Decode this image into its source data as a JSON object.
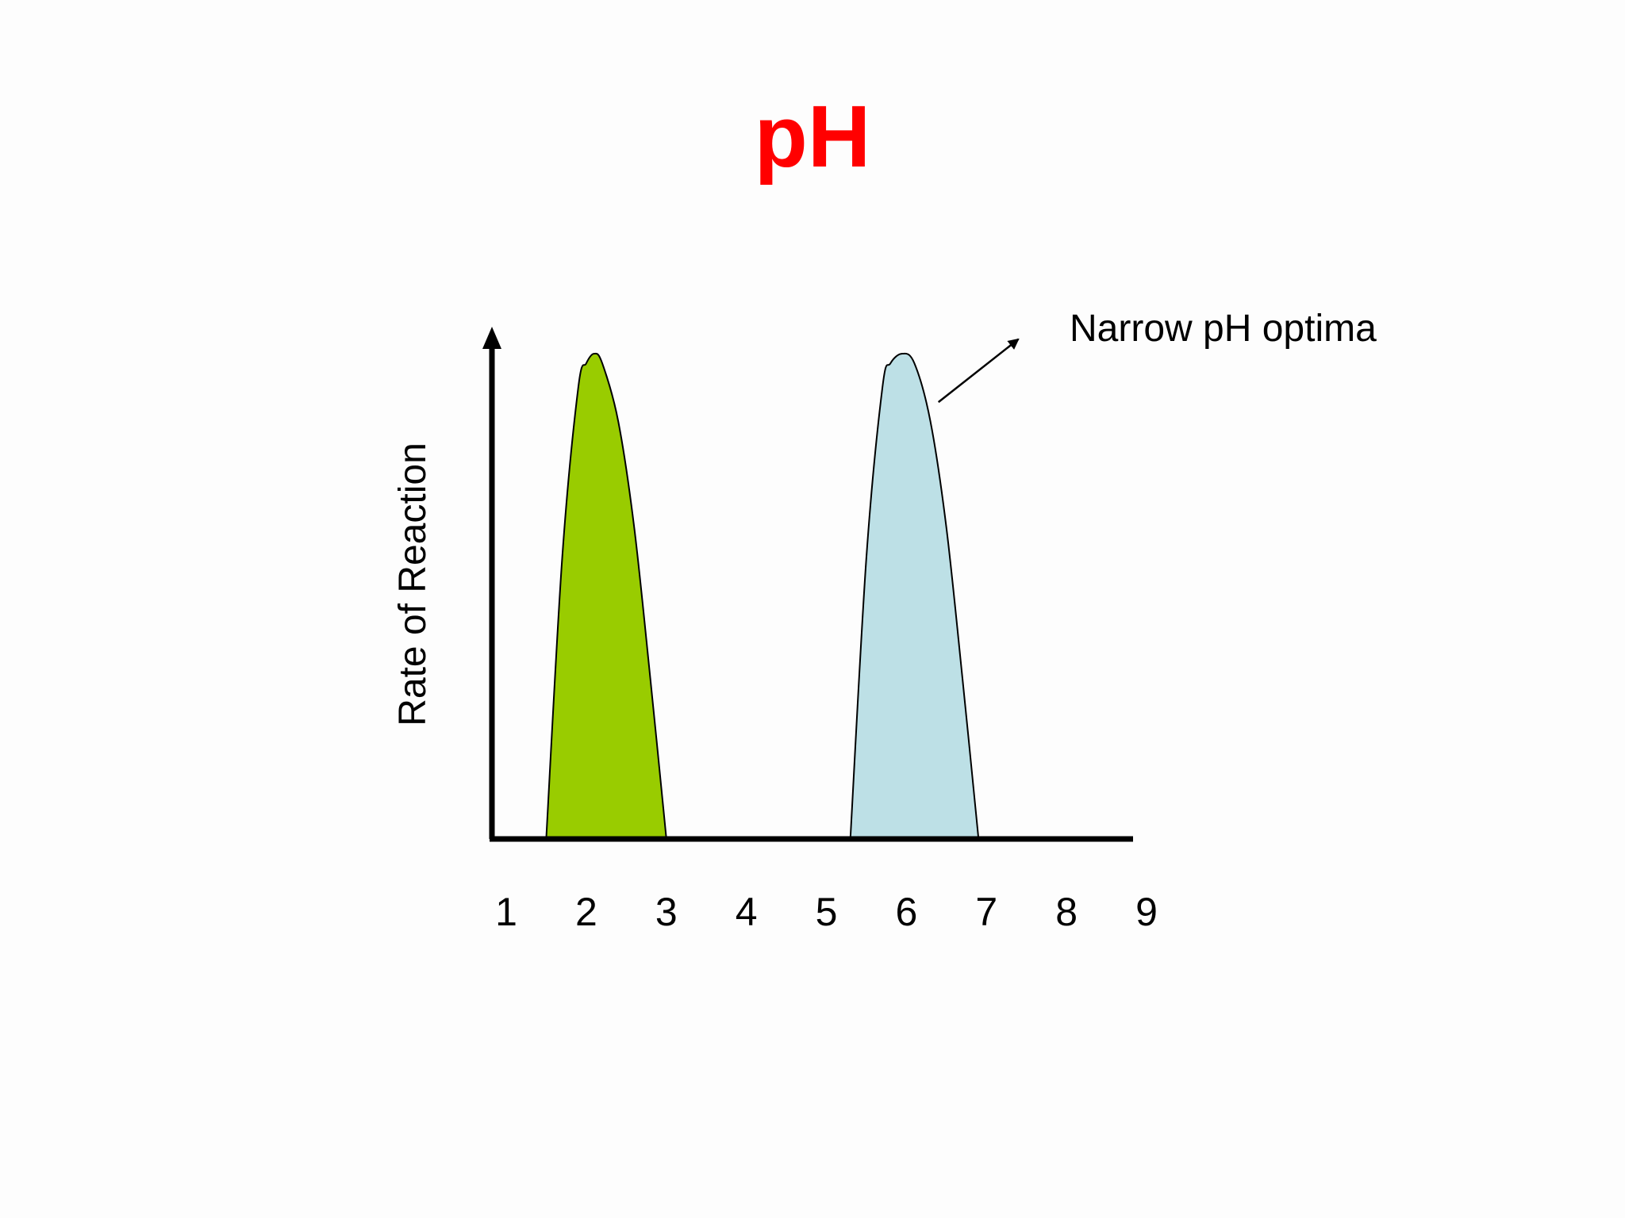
{
  "slide": {
    "title": "pH"
  },
  "colors": {
    "title": "#ff0000",
    "axis": "#000000",
    "series_1": "#99cc00",
    "series_2": "#bde0e6"
  },
  "chart_data": {
    "type": "area",
    "title": "pH",
    "xlabel": "",
    "ylabel": "Rate of Reaction",
    "x_ticks": [
      "1",
      "2",
      "3",
      "4",
      "5",
      "6",
      "7",
      "8",
      "9"
    ],
    "xlim": [
      1,
      9
    ],
    "ylim": [
      0,
      1
    ],
    "grid": false,
    "legend": "none",
    "series": [
      {
        "color": "#99cc00",
        "x": [
          1.5,
          1.7,
          1.9,
          2.0,
          2.1,
          2.2,
          2.4,
          2.6,
          2.8,
          3.0
        ],
        "values": [
          0.0,
          0.58,
          0.93,
          0.98,
          1.0,
          0.98,
          0.86,
          0.64,
          0.33,
          0.0
        ]
      },
      {
        "color": "#bde0e6",
        "x": [
          5.3,
          5.5,
          5.7,
          5.8,
          5.95,
          6.1,
          6.3,
          6.5,
          6.7,
          6.9
        ],
        "values": [
          0.0,
          0.58,
          0.93,
          0.98,
          1.0,
          0.98,
          0.86,
          0.64,
          0.33,
          0.0
        ]
      }
    ],
    "annotations": [
      {
        "text": "Narrow pH optima",
        "arrow_from": {
          "x": 6.4,
          "y": 0.9
        },
        "arrow_to": {
          "x": 7.4,
          "y": 1.03
        }
      }
    ]
  }
}
